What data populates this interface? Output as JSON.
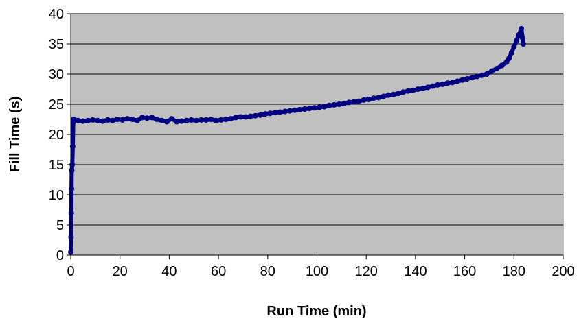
{
  "chart_data": {
    "type": "scatter",
    "title": "",
    "xlabel": "Run Time (min)",
    "ylabel": "Fill Time (s)",
    "xlim": [
      0,
      200
    ],
    "ylim": [
      0,
      40
    ],
    "x_ticks": [
      0,
      20,
      40,
      60,
      80,
      100,
      120,
      140,
      160,
      180,
      200
    ],
    "y_ticks": [
      0,
      5,
      10,
      15,
      20,
      25,
      30,
      35,
      40
    ],
    "grid": "horizontal",
    "legend": "none",
    "plot_background": "#c0c0c0",
    "series_color": "#000080",
    "series": [
      {
        "points": [
          [
            0.0,
            0.5
          ],
          [
            0.1,
            3.0
          ],
          [
            0.2,
            7.0
          ],
          [
            0.3,
            11.0
          ],
          [
            0.4,
            14.0
          ],
          [
            0.6,
            15.0
          ],
          [
            0.8,
            18.0
          ],
          [
            1.0,
            22.0
          ],
          [
            1.2,
            22.5
          ],
          [
            3,
            22.3
          ],
          [
            5,
            22.2
          ],
          [
            7,
            22.3
          ],
          [
            9,
            22.4
          ],
          [
            11,
            22.3
          ],
          [
            13,
            22.2
          ],
          [
            15,
            22.4
          ],
          [
            17,
            22.3
          ],
          [
            19,
            22.5
          ],
          [
            21,
            22.4
          ],
          [
            23,
            22.6
          ],
          [
            25,
            22.5
          ],
          [
            27,
            22.3
          ],
          [
            29,
            22.8
          ],
          [
            31,
            22.7
          ],
          [
            33,
            22.8
          ],
          [
            35,
            22.5
          ],
          [
            37,
            22.3
          ],
          [
            39,
            22.1
          ],
          [
            41,
            22.6
          ],
          [
            43,
            22.1
          ],
          [
            45,
            22.2
          ],
          [
            47,
            22.3
          ],
          [
            49,
            22.4
          ],
          [
            51,
            22.3
          ],
          [
            53,
            22.4
          ],
          [
            55,
            22.4
          ],
          [
            57,
            22.5
          ],
          [
            59,
            22.3
          ],
          [
            61,
            22.4
          ],
          [
            63,
            22.5
          ],
          [
            65,
            22.6
          ],
          [
            67,
            22.8
          ],
          [
            69,
            22.9
          ],
          [
            71,
            22.9
          ],
          [
            73,
            23.0
          ],
          [
            75,
            23.1
          ],
          [
            77,
            23.2
          ],
          [
            79,
            23.4
          ],
          [
            81,
            23.5
          ],
          [
            83,
            23.6
          ],
          [
            85,
            23.7
          ],
          [
            87,
            23.8
          ],
          [
            89,
            23.9
          ],
          [
            91,
            24.0
          ],
          [
            93,
            24.1
          ],
          [
            95,
            24.2
          ],
          [
            97,
            24.3
          ],
          [
            99,
            24.4
          ],
          [
            101,
            24.5
          ],
          [
            103,
            24.6
          ],
          [
            105,
            24.8
          ],
          [
            107,
            24.9
          ],
          [
            109,
            25.0
          ],
          [
            111,
            25.1
          ],
          [
            113,
            25.3
          ],
          [
            115,
            25.4
          ],
          [
            117,
            25.5
          ],
          [
            119,
            25.7
          ],
          [
            121,
            25.8
          ],
          [
            123,
            26.0
          ],
          [
            125,
            26.1
          ],
          [
            127,
            26.3
          ],
          [
            129,
            26.5
          ],
          [
            131,
            26.6
          ],
          [
            133,
            26.8
          ],
          [
            135,
            27.0
          ],
          [
            137,
            27.2
          ],
          [
            139,
            27.3
          ],
          [
            141,
            27.5
          ],
          [
            143,
            27.6
          ],
          [
            145,
            27.8
          ],
          [
            147,
            28.0
          ],
          [
            149,
            28.2
          ],
          [
            151,
            28.3
          ],
          [
            153,
            28.5
          ],
          [
            155,
            28.6
          ],
          [
            157,
            28.8
          ],
          [
            159,
            29.0
          ],
          [
            161,
            29.2
          ],
          [
            163,
            29.4
          ],
          [
            165,
            29.6
          ],
          [
            167,
            29.8
          ],
          [
            169,
            30.0
          ],
          [
            171,
            30.5
          ],
          [
            173,
            30.9
          ],
          [
            175,
            31.4
          ],
          [
            177,
            32.0
          ],
          [
            178,
            32.6
          ],
          [
            179,
            33.5
          ],
          [
            180,
            34.5
          ],
          [
            181,
            35.5
          ],
          [
            182,
            36.5
          ],
          [
            183,
            37.5
          ],
          [
            183.5,
            36.0
          ],
          [
            183.8,
            35.0
          ]
        ]
      }
    ]
  }
}
